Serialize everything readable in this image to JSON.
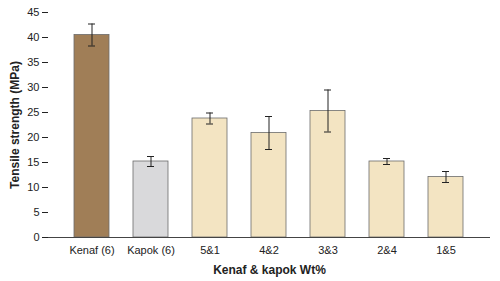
{
  "chart_data": {
    "type": "bar",
    "x_label": "Kenaf & kapok Wt%",
    "y_label": "Tensile strength (MPa)",
    "categories": [
      "Kenaf (6)",
      "Kapok (6)",
      "5&1",
      "4&2",
      "3&3",
      "2&4",
      "1&5"
    ],
    "values": [
      40.5,
      15.2,
      23.8,
      20.9,
      25.3,
      15.2,
      12.1
    ],
    "errors": [
      2.2,
      1.0,
      1.1,
      3.3,
      4.2,
      0.6,
      1.1
    ],
    "colors": [
      "#a07e57",
      "#d9d9db",
      "#f3e4c2",
      "#f3e4c2",
      "#f3e4c2",
      "#f3e4c2",
      "#f3e4c2"
    ],
    "ylim": [
      0,
      45
    ],
    "yticks": [
      0,
      5,
      10,
      15,
      20,
      25,
      30,
      35,
      40,
      45
    ],
    "grid": false
  }
}
